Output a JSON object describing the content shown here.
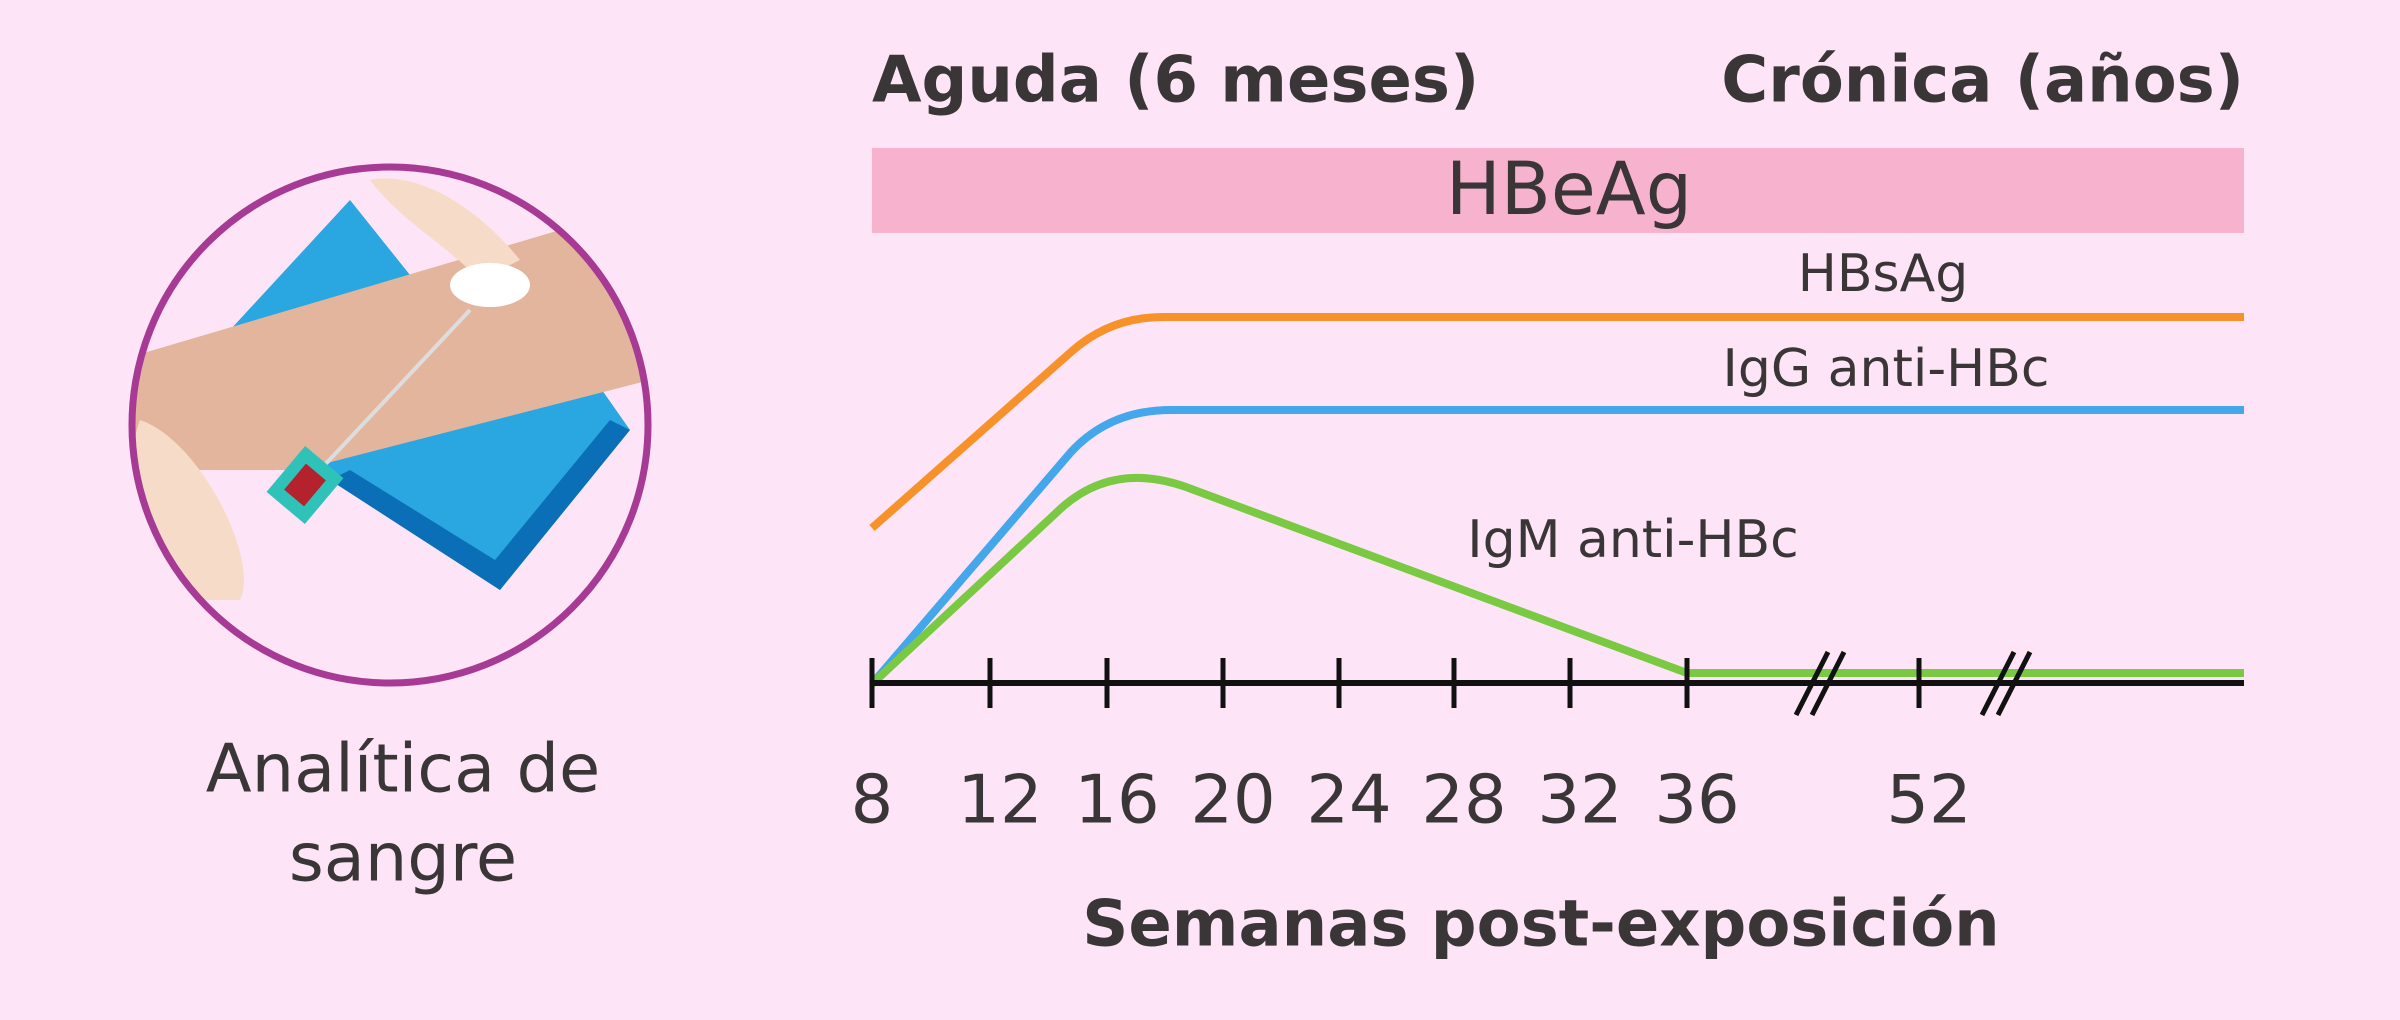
{
  "illustration": {
    "caption": [
      "Analítica de",
      "sangre"
    ]
  },
  "header": {
    "left": "Aguda (6 meses)",
    "right": "Crónica (años)"
  },
  "band": {
    "label": "HBeAg"
  },
  "curves": [
    {
      "label": "HBsAg"
    },
    {
      "label": "IgG anti-HBc"
    },
    {
      "label": "IgM anti-HBc"
    }
  ],
  "axis": {
    "ticks": [
      "8",
      "12",
      "16",
      "20",
      "24",
      "28",
      "32",
      "36",
      "52"
    ],
    "title": "Semanas post-exposición"
  }
}
